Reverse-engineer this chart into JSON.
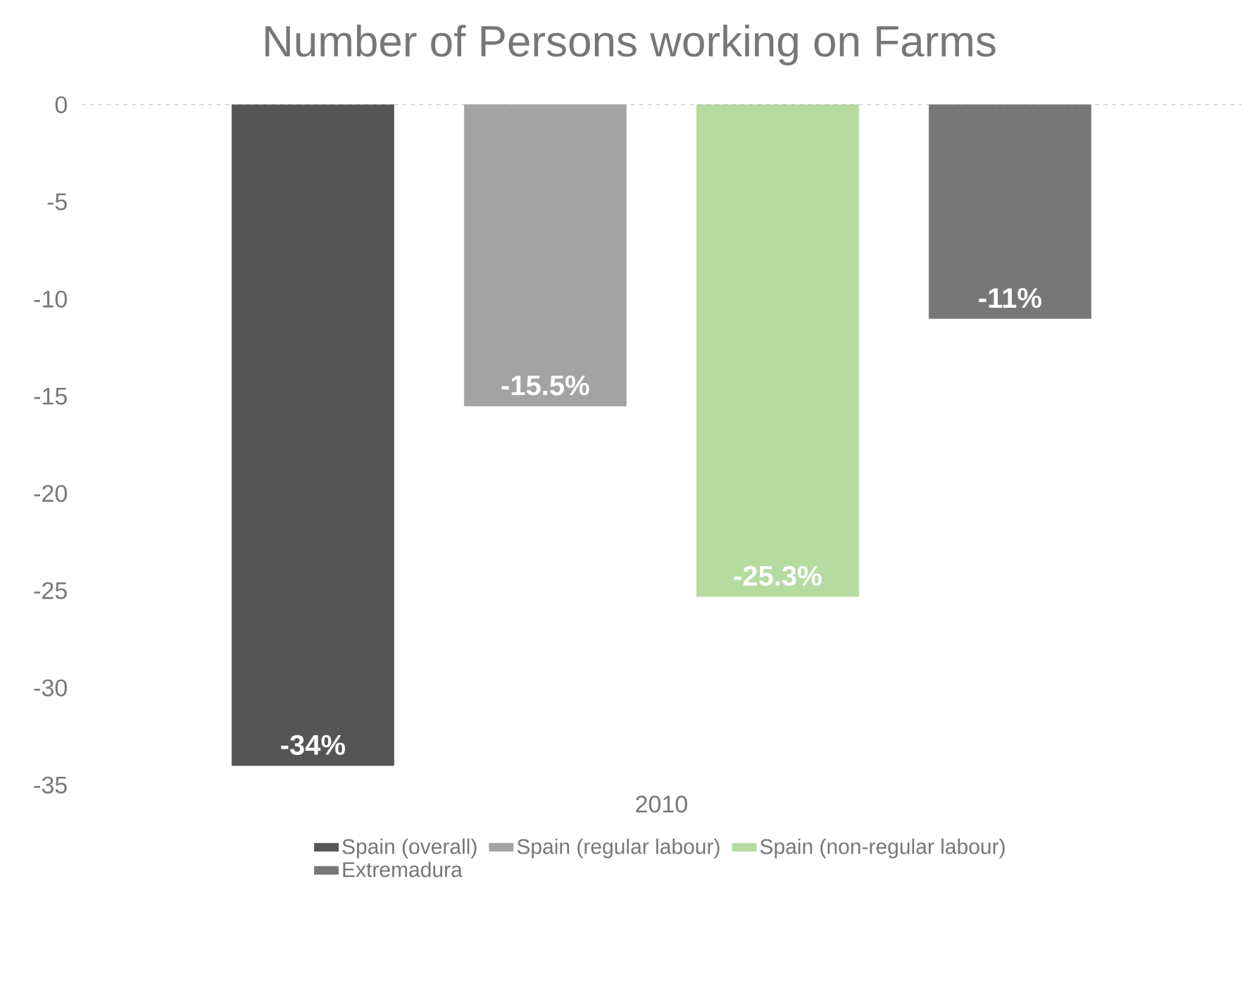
{
  "chart_data": {
    "type": "bar",
    "title": "Number of Persons working on Farms",
    "categories": [
      "2010"
    ],
    "ylim": [
      -35,
      0
    ],
    "yticks": [
      0,
      -5,
      -10,
      -15,
      -20,
      -25,
      -30,
      -35
    ],
    "grid": false,
    "legend": "bottom",
    "series": [
      {
        "name": "Spain (overall)",
        "color": "#555555",
        "values": [
          -34
        ],
        "value_labels": [
          "-34%"
        ]
      },
      {
        "name": "Spain (regular labour)",
        "color": "#a3a3a3",
        "values": [
          -15.5
        ],
        "value_labels": [
          "-15.5%"
        ]
      },
      {
        "name": "Spain (non-regular labour)",
        "color": "#b5dba1",
        "values": [
          -25.3
        ],
        "value_labels": [
          "-25.3%"
        ]
      },
      {
        "name": "Extremadura",
        "color": "#777777",
        "values": [
          -11
        ],
        "value_labels": [
          "-11%"
        ]
      }
    ]
  }
}
